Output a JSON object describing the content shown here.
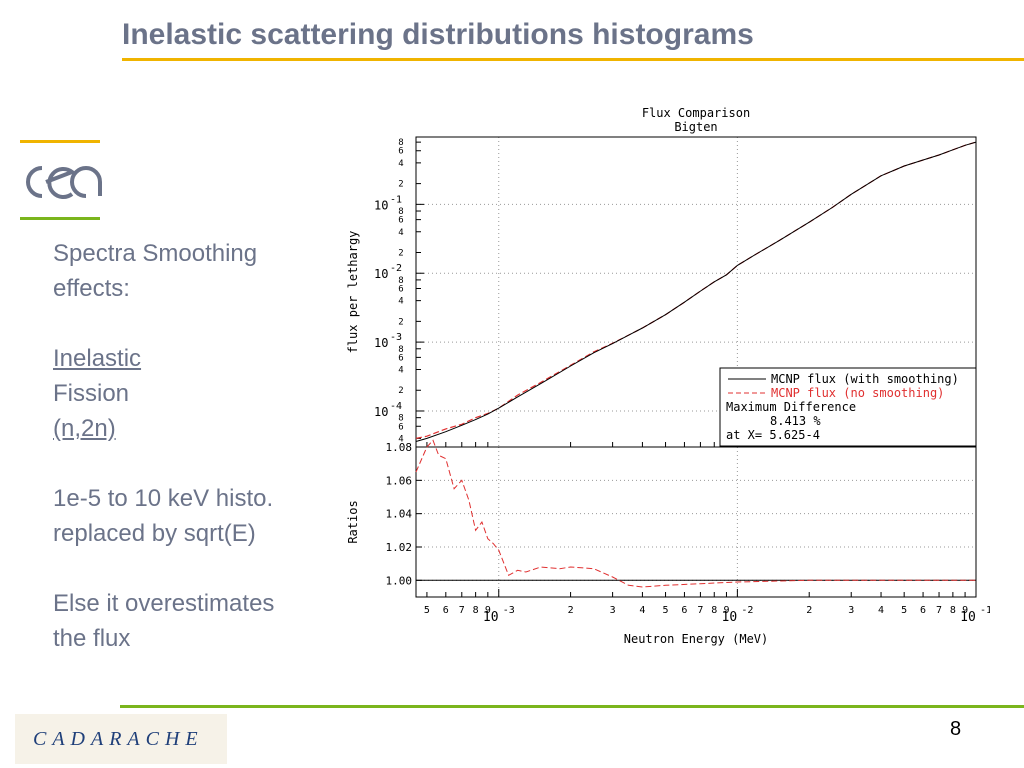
{
  "slide": {
    "title": "Inelastic scattering distributions histograms",
    "page_number": "8",
    "footer_logo": "CADARACHE"
  },
  "bullets": {
    "p1_line1": "Spectra Smoothing",
    "p1_line2": "effects:",
    "p2_line1": "Inelastic",
    "p2_line2": "Fission",
    "p2_line3": "(n,2n)",
    "p3_line1": "1e-5 to 10 keV histo.",
    "p3_line2": "replaced by sqrt(E)",
    "p4_line1": "Else it overestimates",
    "p4_line2": "the flux"
  },
  "colors": {
    "title": "#6b7389",
    "accent_yellow": "#f0b400",
    "accent_green": "#7ab51d",
    "series_smooth": "#000000",
    "series_nosmooth": "#e03030"
  },
  "chart_data": [
    {
      "type": "line",
      "title": "Flux Comparison",
      "subtitle": "Bigten",
      "xlabel": "",
      "ylabel": "flux per lethargy",
      "xscale": "log",
      "yscale": "log",
      "xlim": [
        0.00045,
        0.1
      ],
      "ylim": [
        3e-05,
        0.95
      ],
      "grid": true,
      "y_decade_labels": [
        "10",
        "10",
        "10",
        "10"
      ],
      "y_decade_exponents": [
        "-1",
        "-2",
        "-3",
        "-4"
      ],
      "y_minor_labels": [
        "8",
        "6",
        "4",
        "2",
        "8",
        "6",
        "4",
        "2",
        "8",
        "6",
        "4",
        "2",
        "8",
        "6",
        "4",
        "2",
        "8",
        "6",
        "4"
      ],
      "legend": {
        "placement": "bottom-right",
        "entries": [
          "MCNP flux (with smoothing)",
          "MCNP flux (no smoothing)"
        ],
        "note_line1": "Maximum Difference",
        "note_line2": "8.413 %",
        "note_line3": "at X= 5.625-4"
      },
      "series": [
        {
          "name": "MCNP flux (with smoothing)",
          "x": [
            0.00045,
            0.0005,
            0.0006,
            0.0007,
            0.0008,
            0.0009,
            0.001,
            0.0012,
            0.0015,
            0.002,
            0.0025,
            0.003,
            0.004,
            0.005,
            0.006,
            0.007,
            0.008,
            0.009,
            0.01,
            0.012,
            0.015,
            0.02,
            0.025,
            0.03,
            0.04,
            0.05,
            0.06,
            0.07,
            0.08,
            0.09,
            0.1
          ],
          "y": [
            3.6e-05,
            4e-05,
            5e-05,
            6.2e-05,
            7.5e-05,
            9e-05,
            0.00011,
            0.00016,
            0.00025,
            0.00045,
            0.0007,
            0.00095,
            0.0016,
            0.0025,
            0.0038,
            0.0055,
            0.0075,
            0.0095,
            0.013,
            0.019,
            0.03,
            0.055,
            0.09,
            0.14,
            0.26,
            0.36,
            0.44,
            0.52,
            0.62,
            0.72,
            0.8
          ]
        },
        {
          "name": "MCNP flux (no smoothing)",
          "x": [
            0.00045,
            0.0005,
            0.0006,
            0.0007,
            0.0008,
            0.0009,
            0.001,
            0.0012,
            0.0015,
            0.002,
            0.0025,
            0.003,
            0.004,
            0.005,
            0.006,
            0.007,
            0.008,
            0.009,
            0.01,
            0.012,
            0.015,
            0.02,
            0.025,
            0.03,
            0.04,
            0.05,
            0.06,
            0.07,
            0.08,
            0.09,
            0.1
          ],
          "y": [
            4e-05,
            4.3e-05,
            5.5e-05,
            6.4e-05,
            8e-05,
            9.2e-05,
            0.00011,
            0.00017,
            0.00026,
            0.00046,
            0.00072,
            0.00096,
            0.0016,
            0.0025,
            0.0038,
            0.0055,
            0.0075,
            0.0095,
            0.013,
            0.019,
            0.03,
            0.055,
            0.09,
            0.14,
            0.26,
            0.36,
            0.44,
            0.52,
            0.62,
            0.72,
            0.8
          ]
        }
      ]
    },
    {
      "type": "line",
      "title": "",
      "xlabel": "Neutron Energy (MeV)",
      "ylabel": "Ratios",
      "xscale": "log",
      "xlim": [
        0.00045,
        0.1
      ],
      "ylim": [
        0.99,
        1.08
      ],
      "grid": true,
      "y_ticks": [
        "1.08",
        "1.06",
        "1.04",
        "1.02",
        "1.00"
      ],
      "x_tick_labels": [
        "5",
        "6",
        "7",
        "8",
        "9",
        "2",
        "3",
        "4",
        "5",
        "6",
        "7",
        "8",
        "9",
        "2",
        "3",
        "4",
        "5",
        "6",
        "7",
        "8",
        "9"
      ],
      "x_decade_labels": [
        "10",
        "10",
        "10"
      ],
      "x_decade_exponents": [
        "-3",
        "-2",
        "-1"
      ],
      "series": [
        {
          "name": "MCNP flux (with smoothing)",
          "x": [
            0.00045,
            0.1
          ],
          "y": [
            1.0,
            1.0
          ]
        },
        {
          "name": "MCNP flux (no smoothing)",
          "x": [
            0.00045,
            0.0005,
            0.00053,
            0.00056,
            0.0006,
            0.00065,
            0.0007,
            0.00075,
            0.0008,
            0.00085,
            0.0009,
            0.00095,
            0.001,
            0.0011,
            0.0012,
            0.0013,
            0.0015,
            0.0018,
            0.002,
            0.0025,
            0.003,
            0.0035,
            0.004,
            0.005,
            0.007,
            0.01,
            0.02,
            0.05,
            0.1
          ],
          "y": [
            1.065,
            1.08,
            1.084,
            1.075,
            1.073,
            1.055,
            1.06,
            1.048,
            1.03,
            1.035,
            1.025,
            1.022,
            1.018,
            1.003,
            1.006,
            1.005,
            1.008,
            1.007,
            1.008,
            1.007,
            1.002,
            0.997,
            0.996,
            0.997,
            0.998,
            0.999,
            1.0,
            1.0,
            1.0
          ]
        }
      ]
    }
  ]
}
